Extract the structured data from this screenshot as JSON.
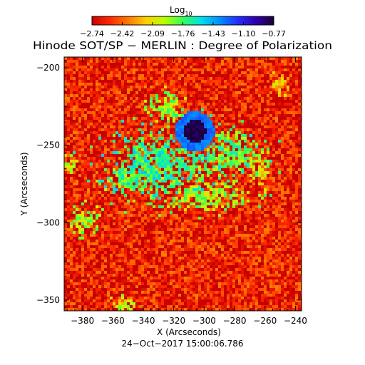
{
  "colorbar": {
    "label_main": "Log",
    "label_sub": "10",
    "ticks": [
      "−2.74",
      "−2.42",
      "−2.09",
      "−1.76",
      "−1.43",
      "−1.10",
      "−0.77"
    ],
    "range": [
      -2.74,
      -0.77
    ],
    "colormap": [
      "#c80000",
      "#ff2a00",
      "#ff7a00",
      "#ffd000",
      "#b8ff00",
      "#33ff55",
      "#00e0e8",
      "#0090ff",
      "#2030ff",
      "#3000b0",
      "#1a0035"
    ]
  },
  "title": "Hinode SOT/SP − MERLIN : Degree of Polarization",
  "footer": "24−Oct−2017 15:00:06.786",
  "chart_data": {
    "type": "heatmap",
    "title": "Hinode SOT/SP − MERLIN : Degree of Polarization",
    "xlabel": "X (Arcseconds)",
    "ylabel": "Y (Arcseconds)",
    "xlim": [
      -392,
      -236
    ],
    "ylim": [
      -357,
      -193
    ],
    "xticks": [
      -380,
      -360,
      -340,
      -320,
      -300,
      -280,
      -260,
      -240
    ],
    "yticks": [
      -200,
      -250,
      -300,
      -350
    ],
    "xtick_labels": [
      "−380",
      "−360",
      "−340",
      "−320",
      "−300",
      "−280",
      "−260",
      "−240"
    ],
    "ytick_labels": [
      "−200",
      "−250",
      "−300",
      "−350"
    ],
    "background_level": -2.6,
    "features": [
      {
        "kind": "sunspot_core",
        "x": -306,
        "y": -241,
        "rx": 7,
        "ry": 8,
        "level": -0.8
      },
      {
        "kind": "penumbra",
        "x": -306,
        "y": -241,
        "rx": 13,
        "ry": 13,
        "level": -1.3
      },
      {
        "kind": "plage",
        "x": -330,
        "y": -262,
        "rx": 30,
        "ry": 18,
        "level": -1.7
      },
      {
        "kind": "plage",
        "x": -348,
        "y": -272,
        "rx": 16,
        "ry": 10,
        "level": -1.8
      },
      {
        "kind": "plage",
        "x": -282,
        "y": -255,
        "rx": 20,
        "ry": 14,
        "level": -1.8
      },
      {
        "kind": "plage",
        "x": -300,
        "y": -283,
        "rx": 26,
        "ry": 10,
        "level": -1.9
      },
      {
        "kind": "plage",
        "x": -378,
        "y": -298,
        "rx": 10,
        "ry": 8,
        "level": -1.9
      },
      {
        "kind": "plage",
        "x": -324,
        "y": -226,
        "rx": 10,
        "ry": 10,
        "level": -1.9
      },
      {
        "kind": "network",
        "x": -352,
        "y": -352,
        "rx": 8,
        "ry": 6,
        "level": -2.0
      },
      {
        "kind": "network",
        "x": -262,
        "y": -268,
        "rx": 6,
        "ry": 10,
        "level": -2.1
      },
      {
        "kind": "network",
        "x": -250,
        "y": -210,
        "rx": 6,
        "ry": 6,
        "level": -2.2
      },
      {
        "kind": "network",
        "x": -388,
        "y": -262,
        "rx": 4,
        "ry": 6,
        "level": -2.0
      }
    ]
  }
}
